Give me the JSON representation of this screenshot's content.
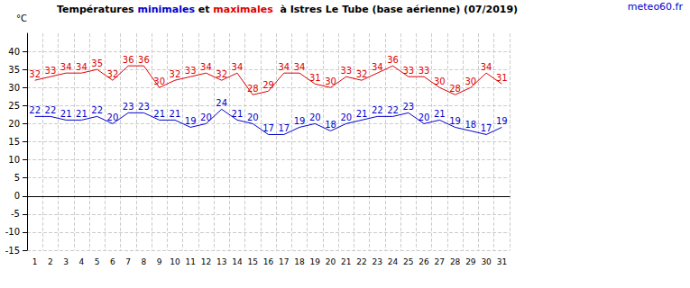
{
  "chart_data": {
    "type": "line",
    "title": "Températures minimales et maximales  à Istres Le Tube (base aérienne) (07/2019)",
    "annotation": "meteo60.fr",
    "y_label": "°C",
    "categories": [
      "1",
      "2",
      "3",
      "4",
      "5",
      "6",
      "7",
      "8",
      "9",
      "10",
      "11",
      "12",
      "13",
      "14",
      "15",
      "16",
      "17",
      "18",
      "19",
      "20",
      "21",
      "22",
      "23",
      "24",
      "25",
      "26",
      "27",
      "28",
      "29",
      "30",
      "31"
    ],
    "series": [
      {
        "name": "minimales",
        "color": "#0000cc",
        "values": [
          22,
          22,
          21,
          21,
          22,
          20,
          23,
          23,
          21,
          21,
          19,
          20,
          24,
          21,
          20,
          17,
          17,
          19,
          20,
          18,
          20,
          21,
          22,
          22,
          23,
          20,
          21,
          19,
          18,
          17,
          19
        ]
      },
      {
        "name": "maximales",
        "color": "#dd0000",
        "values": [
          32,
          33,
          34,
          34,
          35,
          32,
          36,
          36,
          30,
          32,
          33,
          34,
          32,
          34,
          28,
          29,
          34,
          34,
          31,
          30,
          33,
          32,
          34,
          36,
          33,
          33,
          30,
          28,
          30,
          34,
          31
        ]
      }
    ],
    "ylim": [
      -15,
      45
    ],
    "yticks": [
      -15,
      -10,
      -5,
      0,
      5,
      10,
      15,
      20,
      25,
      30,
      35,
      40
    ],
    "grid": true,
    "data_labels": true,
    "marker": "none"
  }
}
